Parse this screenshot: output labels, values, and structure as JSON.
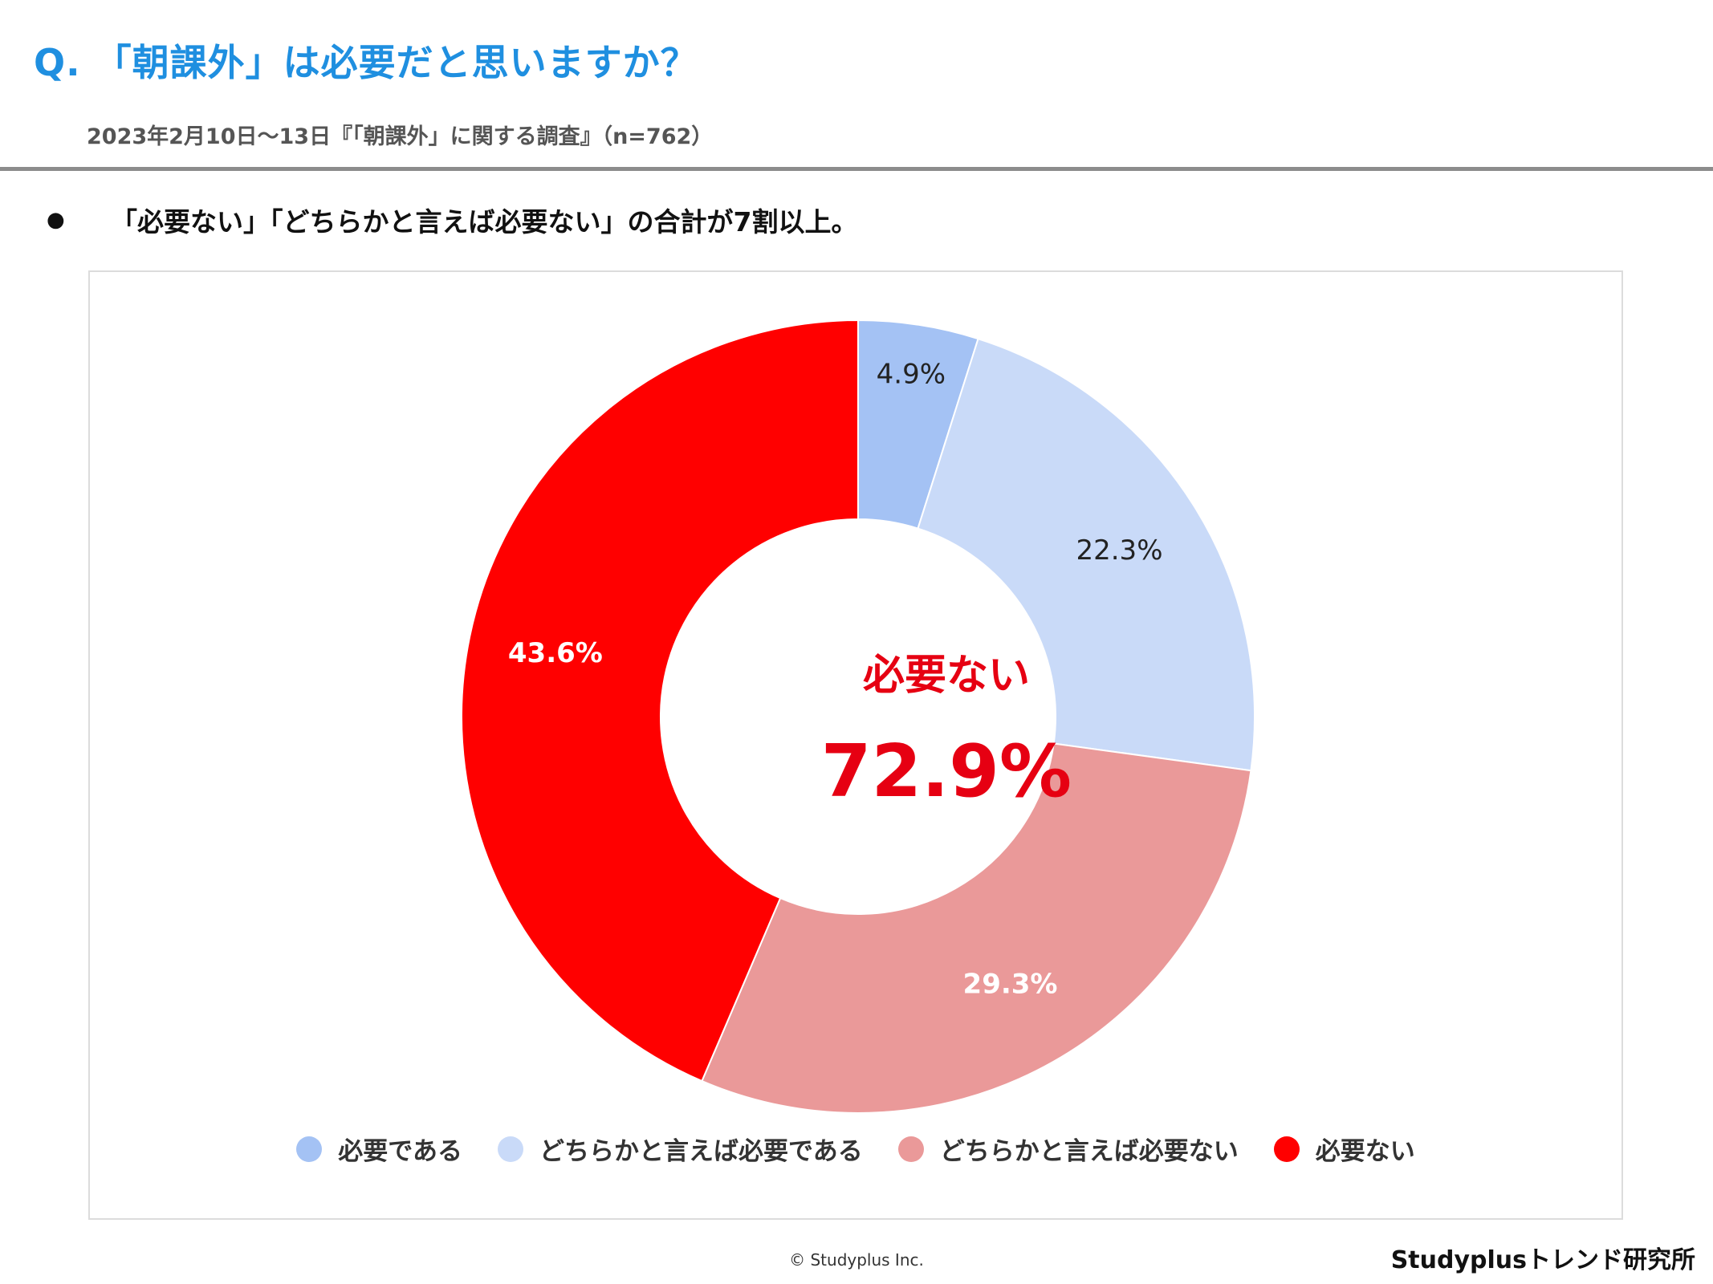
{
  "header": {
    "title": "Q. 「朝課外」は必要だと思いますか？",
    "subtitle": "2023年2月10日～13日『「朝課外」に関する調査』（n=762）"
  },
  "summary": {
    "bullet": "●",
    "text": "「必要ない」「どちらかと言えば必要ない」の合計が7割以上。"
  },
  "center": {
    "label": "必要ない",
    "value": "72.9%"
  },
  "chart_data": {
    "type": "pie",
    "categories": [
      "必要である",
      "どちらかと言えば必要である",
      "どちらかと言えば必要ない",
      "必要ない"
    ],
    "values": [
      4.9,
      22.3,
      29.3,
      43.6
    ],
    "labels": [
      "4.9%",
      "22.3%",
      "29.3%",
      "43.6%"
    ],
    "colors": [
      "#a4c2f4",
      "#c9daf8",
      "#ea9999",
      "#ff0000"
    ],
    "label_colors": [
      "#222222",
      "#222222",
      "#ffffff",
      "#ffffff"
    ],
    "legend_position": "bottom"
  },
  "footer": {
    "copyright": "© Studyplus Inc.",
    "brand": "Studyplusトレンド研究所"
  }
}
